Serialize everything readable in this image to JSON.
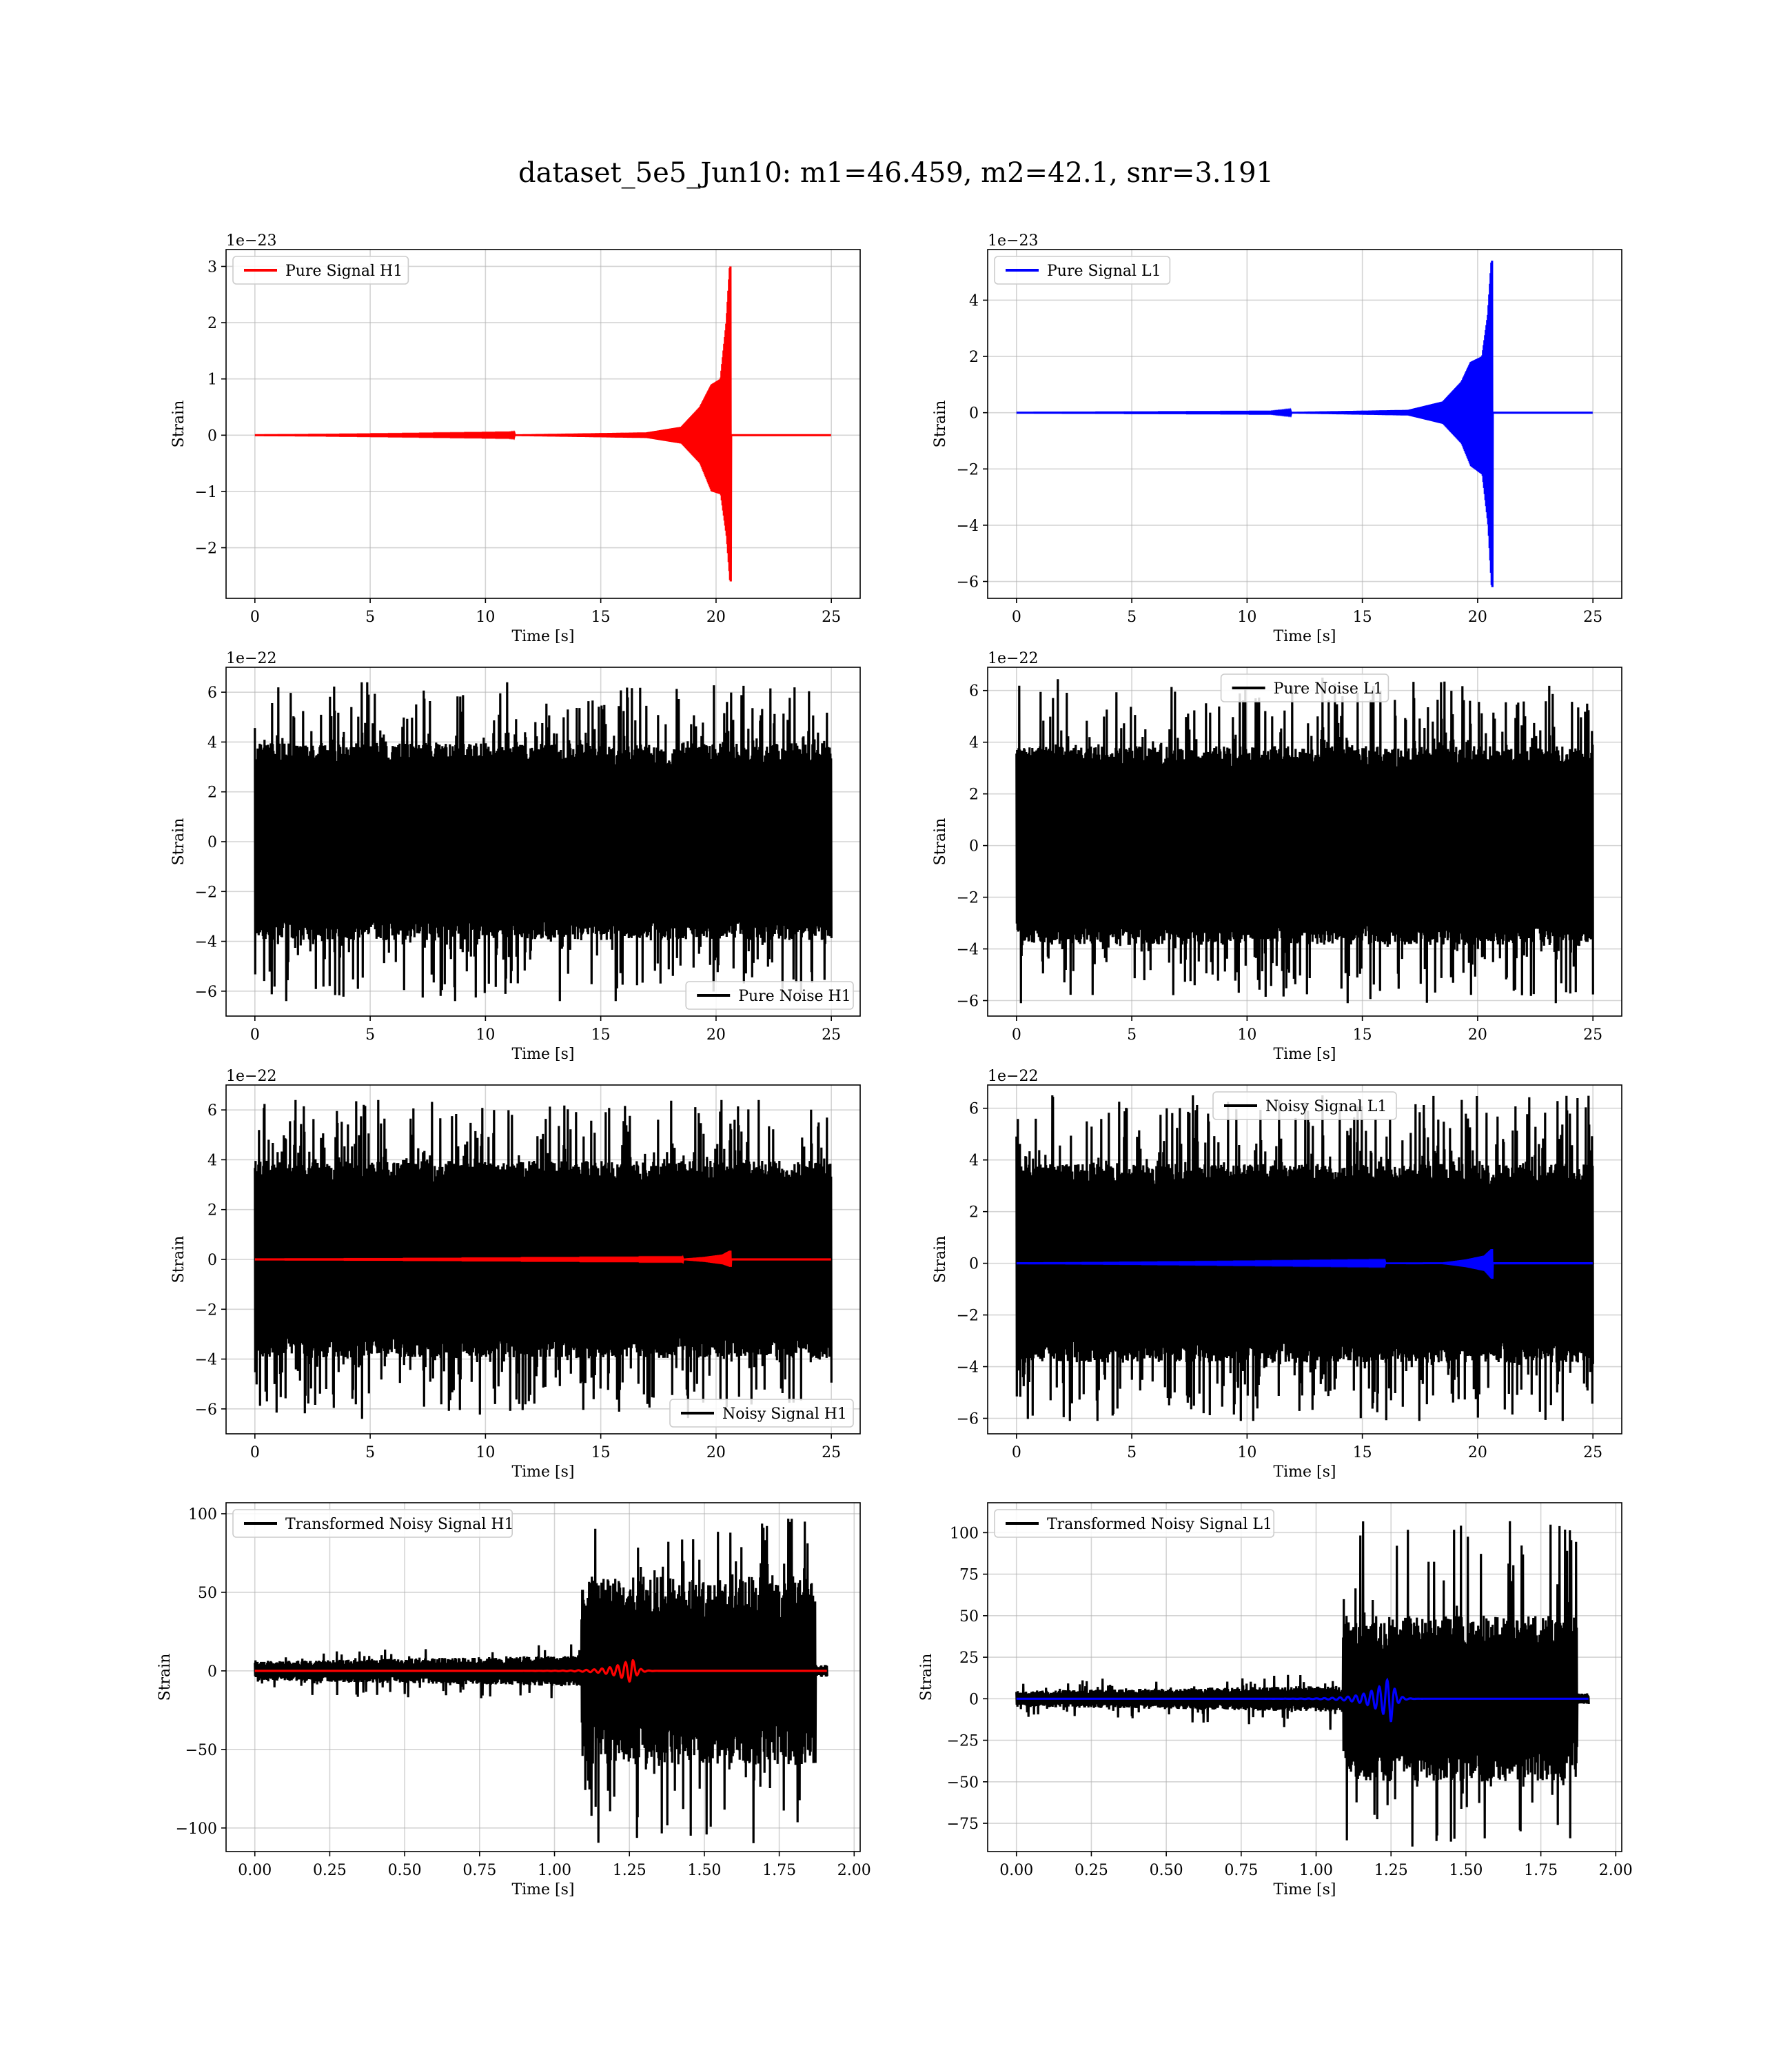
{
  "figure": {
    "title": "dataset_5e5_Jun10: m1=46.459, m2=42.1, snr=3.191"
  },
  "chart_data": [
    {
      "type": "line",
      "legend": "Pure Signal H1",
      "legend_loc": "upper left",
      "xlabel": "Time [s]",
      "ylabel": "Strain",
      "offset_label": "1e−23",
      "xlim": [
        -1.25,
        26.25
      ],
      "ylim": [
        -2.9,
        3.3
      ],
      "xticks": [
        0,
        5,
        10,
        15,
        20,
        25
      ],
      "xticklabels": [
        "0",
        "5",
        "10",
        "15",
        "20",
        "25"
      ],
      "yticks": [
        -2,
        -1,
        0,
        1,
        2,
        3
      ],
      "yticklabels": [
        "−2",
        "−1",
        "0",
        "1",
        "2",
        "3"
      ],
      "grid": true,
      "series": [
        {
          "name": "Pure Signal H1",
          "color": "#ff0000",
          "kind": "chirp",
          "x_start": 0,
          "x_end": 25,
          "t_merge": 20.6,
          "envelope": [
            [
              0,
              0
            ],
            [
              11,
              0.01
            ],
            [
              17,
              0.05
            ],
            [
              18.5,
              0.15
            ],
            [
              19.3,
              0.5
            ],
            [
              19.8,
              0.9
            ],
            [
              20.2,
              1.0
            ],
            [
              20.45,
              2.0
            ],
            [
              20.6,
              3.0
            ]
          ],
          "envelope_neg": [
            [
              0,
              0
            ],
            [
              11,
              -0.01
            ],
            [
              17,
              -0.05
            ],
            [
              18.5,
              -0.15
            ],
            [
              19.3,
              -0.5
            ],
            [
              19.8,
              -1.0
            ],
            [
              20.2,
              -1.05
            ],
            [
              20.45,
              -1.8
            ],
            [
              20.6,
              -2.6
            ]
          ]
        }
      ]
    },
    {
      "type": "line",
      "legend": "Pure Signal L1",
      "legend_loc": "upper left",
      "xlabel": "Time [s]",
      "ylabel": "Strain",
      "offset_label": "1e−23",
      "xlim": [
        -1.25,
        26.25
      ],
      "ylim": [
        -6.6,
        5.8
      ],
      "xticks": [
        0,
        5,
        10,
        15,
        20,
        25
      ],
      "xticklabels": [
        "0",
        "5",
        "10",
        "15",
        "20",
        "25"
      ],
      "yticks": [
        -6,
        -4,
        -2,
        0,
        2,
        4
      ],
      "yticklabels": [
        "−6",
        "−4",
        "−2",
        "0",
        "2",
        "4"
      ],
      "grid": true,
      "series": [
        {
          "name": "Pure Signal L1",
          "color": "#0000ff",
          "kind": "chirp",
          "x_start": 0,
          "x_end": 25,
          "t_merge": 20.6,
          "envelope": [
            [
              0,
              0
            ],
            [
              11,
              0.01
            ],
            [
              17,
              0.1
            ],
            [
              18.5,
              0.4
            ],
            [
              19.3,
              1.1
            ],
            [
              19.7,
              1.8
            ],
            [
              20.2,
              2.0
            ],
            [
              20.45,
              3.5
            ],
            [
              20.6,
              5.4
            ]
          ],
          "envelope_neg": [
            [
              0,
              0
            ],
            [
              11,
              -0.01
            ],
            [
              17,
              -0.1
            ],
            [
              18.5,
              -0.4
            ],
            [
              19.3,
              -1.1
            ],
            [
              19.7,
              -1.9
            ],
            [
              20.2,
              -2.2
            ],
            [
              20.45,
              -4.0
            ],
            [
              20.6,
              -6.2
            ]
          ]
        }
      ]
    },
    {
      "type": "line",
      "legend": "Pure Noise H1",
      "legend_loc": "lower right",
      "xlabel": "Time [s]",
      "ylabel": "Strain",
      "offset_label": "1e−22",
      "xlim": [
        -1.25,
        26.25
      ],
      "ylim": [
        -7.0,
        7.0
      ],
      "xticks": [
        0,
        5,
        10,
        15,
        20,
        25
      ],
      "xticklabels": [
        "0",
        "5",
        "10",
        "15",
        "20",
        "25"
      ],
      "yticks": [
        -6,
        -4,
        -2,
        0,
        2,
        4,
        6
      ],
      "yticklabels": [
        "−6",
        "−4",
        "−2",
        "0",
        "2",
        "4",
        "6"
      ],
      "grid": true,
      "series": [
        {
          "name": "Pure Noise H1",
          "color": "#000000",
          "kind": "noise",
          "x_start": 0,
          "x_end": 25,
          "max": 6.4,
          "min": -6.4,
          "band_hi": 3.6,
          "band_lo": -3.6
        }
      ]
    },
    {
      "type": "line",
      "legend": "Pure Noise L1",
      "legend_loc": "upper center",
      "xlabel": "Time [s]",
      "ylabel": "Strain",
      "offset_label": "1e−22",
      "xlim": [
        -1.25,
        26.25
      ],
      "ylim": [
        -6.6,
        6.9
      ],
      "xticks": [
        0,
        5,
        10,
        15,
        20,
        25
      ],
      "xticklabels": [
        "0",
        "5",
        "10",
        "15",
        "20",
        "25"
      ],
      "yticks": [
        -6,
        -4,
        -2,
        0,
        2,
        4,
        6
      ],
      "yticklabels": [
        "−6",
        "−4",
        "−2",
        "0",
        "2",
        "4",
        "6"
      ],
      "grid": true,
      "series": [
        {
          "name": "Pure Noise L1",
          "color": "#000000",
          "kind": "noise",
          "x_start": 0,
          "x_end": 25,
          "max": 6.5,
          "min": -6.1,
          "band_hi": 3.5,
          "band_lo": -3.5
        }
      ]
    },
    {
      "type": "line",
      "legend": "Noisy Signal H1",
      "legend_loc": "lower right",
      "xlabel": "Time [s]",
      "ylabel": "Strain",
      "offset_label": "1e−22",
      "xlim": [
        -1.25,
        26.25
      ],
      "ylim": [
        -7.0,
        7.0
      ],
      "xticks": [
        0,
        5,
        10,
        15,
        20,
        25
      ],
      "xticklabels": [
        "0",
        "5",
        "10",
        "15",
        "20",
        "25"
      ],
      "yticks": [
        -6,
        -4,
        -2,
        0,
        2,
        4,
        6
      ],
      "yticklabels": [
        "−6",
        "−4",
        "−2",
        "0",
        "2",
        "4",
        "6"
      ],
      "grid": true,
      "series": [
        {
          "name": "Noisy Signal H1",
          "color": "#000000",
          "kind": "noise",
          "x_start": 0,
          "x_end": 25,
          "max": 6.4,
          "min": -6.4,
          "band_hi": 3.6,
          "band_lo": -3.6
        },
        {
          "color": "#ff0000",
          "kind": "chirp",
          "x_start": 0,
          "x_end": 25,
          "t_merge": 20.6,
          "envelope": [
            [
              0,
              0
            ],
            [
              18.5,
              0.02
            ],
            [
              19.5,
              0.1
            ],
            [
              20.3,
              0.2
            ],
            [
              20.6,
              0.35
            ]
          ],
          "envelope_neg": [
            [
              0,
              0
            ],
            [
              18.5,
              -0.02
            ],
            [
              19.5,
              -0.1
            ],
            [
              20.3,
              -0.2
            ],
            [
              20.6,
              -0.3
            ]
          ]
        }
      ]
    },
    {
      "type": "line",
      "legend": "Noisy Signal L1",
      "legend_loc": "upper center",
      "xlabel": "Time [s]",
      "ylabel": "Strain",
      "offset_label": "1e−22",
      "xlim": [
        -1.25,
        26.25
      ],
      "ylim": [
        -6.6,
        6.9
      ],
      "xticks": [
        0,
        5,
        10,
        15,
        20,
        25
      ],
      "xticklabels": [
        "0",
        "5",
        "10",
        "15",
        "20",
        "25"
      ],
      "yticks": [
        -6,
        -4,
        -2,
        0,
        2,
        4,
        6
      ],
      "yticklabels": [
        "−6",
        "−4",
        "−2",
        "0",
        "2",
        "4",
        "6"
      ],
      "grid": true,
      "series": [
        {
          "name": "Noisy Signal L1",
          "color": "#000000",
          "kind": "noise",
          "x_start": 0,
          "x_end": 25,
          "max": 6.5,
          "min": -6.1,
          "band_hi": 3.5,
          "band_lo": -3.5
        },
        {
          "color": "#0000ff",
          "kind": "chirp",
          "x_start": 0,
          "x_end": 25,
          "t_merge": 20.6,
          "envelope": [
            [
              0,
              0
            ],
            [
              18.5,
              0.03
            ],
            [
              19.5,
              0.15
            ],
            [
              20.3,
              0.3
            ],
            [
              20.6,
              0.55
            ]
          ],
          "envelope_neg": [
            [
              0,
              0
            ],
            [
              18.5,
              -0.03
            ],
            [
              19.5,
              -0.15
            ],
            [
              20.3,
              -0.3
            ],
            [
              20.6,
              -0.6
            ]
          ]
        }
      ]
    },
    {
      "type": "line",
      "legend": "Transformed Noisy Signal H1",
      "legend_loc": "upper left",
      "xlabel": "Time [s]",
      "ylabel": "Strain",
      "offset_label": "",
      "xlim": [
        -0.096,
        2.02
      ],
      "ylim": [
        -115,
        107
      ],
      "xticks": [
        0.0,
        0.25,
        0.5,
        0.75,
        1.0,
        1.25,
        1.5,
        1.75,
        2.0
      ],
      "xticklabels": [
        "0.00",
        "0.25",
        "0.50",
        "0.75",
        "1.00",
        "1.25",
        "1.50",
        "1.75",
        "2.00"
      ],
      "yticks": [
        -100,
        -50,
        0,
        50,
        100
      ],
      "yticklabels": [
        "−100",
        "−50",
        "0",
        "50",
        "100"
      ],
      "grid": true,
      "series": [
        {
          "name": "Transformed Noisy Signal H1",
          "color": "#000000",
          "kind": "transformed",
          "x_start": 0,
          "x_end": 1.91,
          "t_jump": 1.09,
          "t_cut": 1.87,
          "pre_amp": 10,
          "post_amp": 60,
          "post_max": 97,
          "post_min": -110
        },
        {
          "color": "#ff0000",
          "kind": "wavelet",
          "x_start": 0,
          "x_end": 1.91,
          "t_peak": 1.26,
          "peak_amp": 8
        }
      ]
    },
    {
      "type": "line",
      "legend": "Transformed Noisy Signal L1",
      "legend_loc": "upper left",
      "xlabel": "Time [s]",
      "ylabel": "Strain",
      "offset_label": "",
      "xlim": [
        -0.096,
        2.02
      ],
      "ylim": [
        -92,
        118
      ],
      "xticks": [
        0.0,
        0.25,
        0.5,
        0.75,
        1.0,
        1.25,
        1.5,
        1.75,
        2.0
      ],
      "xticklabels": [
        "0.00",
        "0.25",
        "0.50",
        "0.75",
        "1.00",
        "1.25",
        "1.50",
        "1.75",
        "2.00"
      ],
      "yticks": [
        -75,
        -50,
        -25,
        0,
        25,
        50,
        75,
        100
      ],
      "yticklabels": [
        "−75",
        "−50",
        "−25",
        "0",
        "25",
        "50",
        "75",
        "100"
      ],
      "grid": true,
      "series": [
        {
          "name": "Transformed Noisy Signal L1",
          "color": "#000000",
          "kind": "transformed",
          "x_start": 0,
          "x_end": 1.91,
          "t_jump": 1.09,
          "t_cut": 1.87,
          "pre_amp": 8,
          "post_amp": 50,
          "post_max": 110,
          "post_min": -90
        },
        {
          "color": "#0000ff",
          "kind": "wavelet",
          "x_start": 0,
          "x_end": 1.91,
          "t_peak": 1.25,
          "peak_amp": 14
        }
      ]
    }
  ]
}
